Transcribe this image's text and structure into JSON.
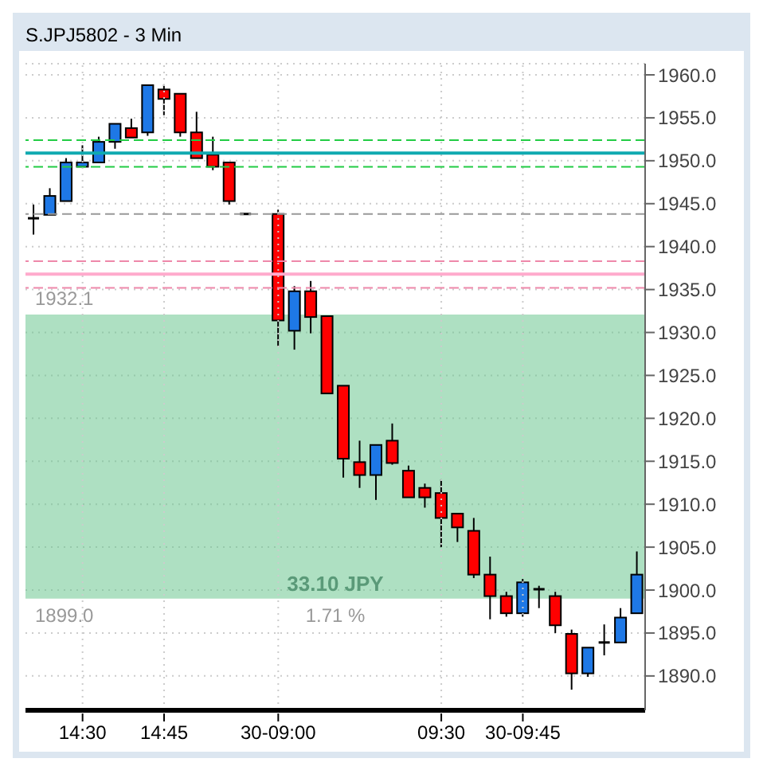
{
  "chart_data": {
    "type": "candlestick",
    "title": "S.JPJ5802 - 3 Min",
    "categories": [
      null,
      null,
      null,
      "14:30",
      null,
      null,
      null,
      null,
      "14:45",
      null,
      null,
      null,
      null,
      null,
      null,
      "30-09:00",
      null,
      null,
      null,
      null,
      null,
      null,
      null,
      null,
      null,
      "09:30",
      null,
      null,
      null,
      null,
      "30-09:45",
      null,
      null,
      null,
      null,
      null,
      null,
      null
    ],
    "ohlc": [
      [
        1943.3,
        1944.9,
        1941.4,
        1943.3
      ],
      [
        1943.7,
        1946.8,
        1943.7,
        1945.9
      ],
      [
        1945.3,
        1950.3,
        1945.3,
        1949.8
      ],
      [
        1949.3,
        1951.8,
        1949.3,
        1949.8
      ],
      [
        1949.8,
        1952.8,
        1949.8,
        1952.2
      ],
      [
        1952.2,
        1954.3,
        1951.4,
        1954.3
      ],
      [
        1953.8,
        1954.9,
        1952.7,
        1952.7
      ],
      [
        1953.3,
        1958.8,
        1952.9,
        1958.8
      ],
      [
        1958.3,
        1958.9,
        1955.3,
        1957.2
      ],
      [
        1957.8,
        1957.8,
        1952.8,
        1953.3
      ],
      [
        1953.3,
        1955.7,
        1950.3,
        1950.3
      ],
      [
        1950.7,
        1952.8,
        1948.9,
        1949.3
      ],
      [
        1949.8,
        1949.8,
        1944.9,
        1945.3
      ],
      [
        1943.8,
        1943.8,
        1943.8,
        1943.8
      ],
      null,
      [
        1943.8,
        1944.3,
        1928.4,
        1931.4
      ],
      [
        1930.2,
        1935.4,
        1928.0,
        1934.8
      ],
      [
        1934.8,
        1936.0,
        1929.9,
        1931.8
      ],
      [
        1931.9,
        1931.9,
        1922.9,
        1922.9
      ],
      [
        1923.8,
        1923.8,
        1913.1,
        1915.3
      ],
      [
        1914.9,
        1917.4,
        1911.9,
        1913.4
      ],
      [
        1913.4,
        1916.9,
        1910.5,
        1916.9
      ],
      [
        1917.4,
        1919.4,
        1914.6,
        1914.8
      ],
      [
        1913.9,
        1914.5,
        1910.8,
        1910.8
      ],
      [
        1911.9,
        1912.4,
        1909.6,
        1910.8
      ],
      [
        1911.3,
        1912.9,
        1905.0,
        1908.4
      ],
      [
        1908.9,
        1908.9,
        1905.6,
        1907.3
      ],
      [
        1906.9,
        1908.4,
        1901.4,
        1901.8
      ],
      [
        1901.8,
        1903.9,
        1896.6,
        1899.3
      ],
      [
        1899.3,
        1899.8,
        1896.9,
        1897.3
      ],
      [
        1897.3,
        1901.3,
        1896.9,
        1900.9
      ],
      [
        1900.1,
        1900.5,
        1897.9,
        1900.1
      ],
      [
        1899.3,
        1899.8,
        1895.0,
        1895.9
      ],
      [
        1894.9,
        1895.4,
        1888.4,
        1890.3
      ],
      [
        1890.3,
        1893.3,
        1889.9,
        1893.3
      ],
      [
        1893.9,
        1896.0,
        1892.4,
        1893.9
      ],
      [
        1893.9,
        1897.9,
        1893.9,
        1896.8
      ],
      [
        1897.3,
        1904.5,
        1897.3,
        1901.8
      ]
    ],
    "colors": [
      "#000000",
      "#1e78e6",
      "#1e78e6",
      "#1e78e6",
      "#1e78e6",
      "#1e78e6",
      "#ff0000",
      "#1e78e6",
      "#ff0000",
      "#ff0000",
      "#ff0000",
      "#ff0000",
      "#ff0000",
      "#000000",
      null,
      "#ff0000",
      "#1e78e6",
      "#ff0000",
      "#ff0000",
      "#ff0000",
      "#ff0000",
      "#1e78e6",
      "#ff0000",
      "#ff0000",
      "#ff0000",
      "#ff0000",
      "#ff0000",
      "#ff0000",
      "#ff0000",
      "#ff0000",
      "#1e78e6",
      "#000000",
      "#ff0000",
      "#ff0000",
      "#1e78e6",
      "#000000",
      "#1e78e6",
      "#1e78e6"
    ],
    "ylim": [
      1886,
      1961.3
    ],
    "yticks": [
      {
        "value": 1890,
        "label": "1890.0"
      },
      {
        "value": 1895,
        "label": "1895.0"
      },
      {
        "value": 1900,
        "label": "1900.0"
      },
      {
        "value": 1905,
        "label": "1905.0"
      },
      {
        "value": 1910,
        "label": "1910.0"
      },
      {
        "value": 1915,
        "label": "1915.0"
      },
      {
        "value": 1920,
        "label": "1920.0"
      },
      {
        "value": 1925,
        "label": "1925.0"
      },
      {
        "value": 1930,
        "label": "1930.0"
      },
      {
        "value": 1935,
        "label": "1935.0"
      },
      {
        "value": 1940,
        "label": "1940.0"
      },
      {
        "value": 1945,
        "label": "1945.0"
      },
      {
        "value": 1950,
        "label": "1950.0"
      },
      {
        "value": 1955,
        "label": "1955.0"
      },
      {
        "value": 1960,
        "label": "1960.0"
      }
    ],
    "grid": true,
    "ref_lines": [
      {
        "axis": "y",
        "value": 1952.4,
        "color": "#22cc44",
        "line_style": "dashed"
      },
      {
        "axis": "y",
        "value": 1950.9,
        "color": "#10aab0",
        "line_style": "solid"
      },
      {
        "axis": "y",
        "value": 1949.3,
        "color": "#22cc44",
        "line_style": "dashed"
      },
      {
        "axis": "y",
        "value": 1943.8,
        "color": "#999999",
        "line_style": "dashed"
      },
      {
        "axis": "y",
        "value": 1938.3,
        "color": "#ee88aa",
        "line_style": "dashed"
      },
      {
        "axis": "y",
        "value": 1936.8,
        "color": "#ffaacc",
        "line_style": "solid"
      },
      {
        "axis": "y",
        "value": 1935.2,
        "color": "#ee88aa",
        "line_style": "dashed"
      }
    ],
    "bands": [
      {
        "axis": "y",
        "from": 1899.0,
        "to": 1932.1,
        "label": "33.10 JPY",
        "color": "#6cc690"
      }
    ],
    "annotations": [
      {
        "text": "1932.1",
        "y": 1932.1
      },
      {
        "text": "1899.0",
        "y": 1899.0
      },
      {
        "text": "1.71 %",
        "y": 1899.0
      }
    ]
  }
}
